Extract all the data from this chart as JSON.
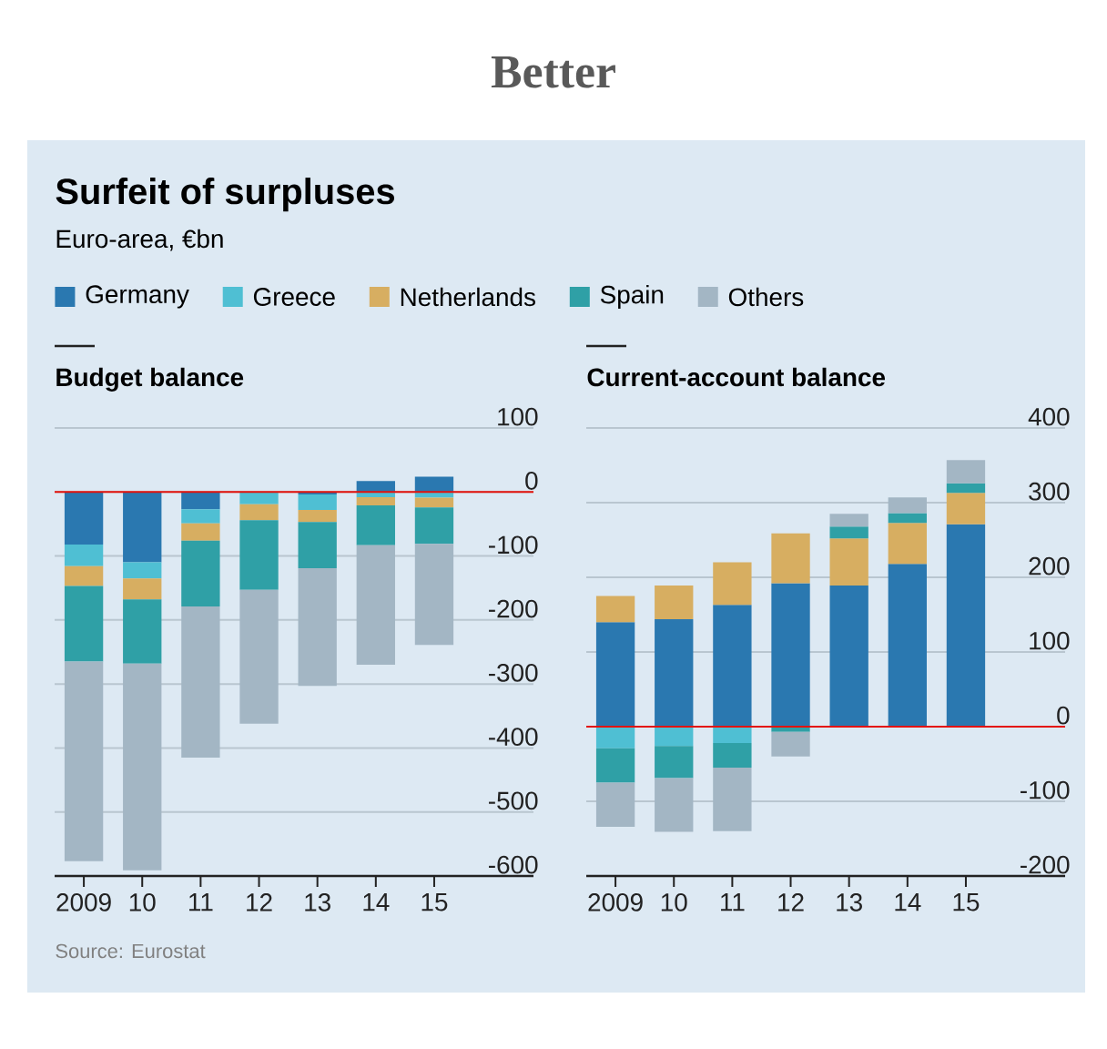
{
  "chart_data": [
    {
      "type": "other",
      "title": "Surfeit of surpluses",
      "subtitle": "Euro-area, €bn",
      "annotations": [
        "Better"
      ]
    },
    {
      "type": "bar",
      "stacked": true,
      "title": "Budget balance",
      "categories": [
        "2009",
        "10",
        "11",
        "12",
        "13",
        "14",
        "15"
      ],
      "ylim": [
        -600,
        100
      ],
      "yticks": [
        100,
        0,
        -100,
        -200,
        -300,
        -400,
        -500,
        -600
      ],
      "grid": "y",
      "legend": "top",
      "ref_lines": [
        {
          "axis": "y",
          "value": 0,
          "color": "#e3120b"
        }
      ],
      "annotations": [
        "Source: Eurostat"
      ],
      "series": [
        {
          "name": "Germany",
          "color": "#2a78b0",
          "values": [
            -82,
            -110,
            -27,
            0,
            -4,
            17,
            24
          ]
        },
        {
          "name": "Greece",
          "color": "#4fbfd3",
          "values": [
            -34,
            -25,
            -22,
            -19,
            -24,
            -8,
            -9
          ]
        },
        {
          "name": "Netherlands",
          "color": "#d7ae61",
          "values": [
            -31,
            -33,
            -27,
            -25,
            -19,
            -13,
            -15
          ]
        },
        {
          "name": "Spain",
          "color": "#2fa0a6",
          "values": [
            -118,
            -100,
            -103,
            -109,
            -72,
            -62,
            -57
          ]
        },
        {
          "name": "Others",
          "color": "#a3b6c4",
          "values": [
            -312,
            -323,
            -236,
            -209,
            -184,
            -187,
            -158
          ]
        }
      ]
    },
    {
      "type": "bar",
      "stacked": true,
      "title": "Current-account balance",
      "categories": [
        "2009",
        "10",
        "11",
        "12",
        "13",
        "14",
        "15"
      ],
      "ylim": [
        -200,
        400
      ],
      "yticks": [
        400,
        300,
        200,
        100,
        0,
        -100,
        -200
      ],
      "grid": "y",
      "ref_lines": [
        {
          "axis": "y",
          "value": 0,
          "color": "#e3120b"
        }
      ],
      "series": [
        {
          "color": "#2a78b0",
          "values": [
            140,
            144,
            163,
            192,
            189,
            218,
            271
          ]
        },
        {
          "color": "#4fbfd3",
          "values": [
            -29,
            -26,
            -22,
            null,
            null,
            null,
            0
          ]
        },
        {
          "color": "#d7ae61",
          "values": [
            35,
            45,
            57,
            67,
            63,
            55,
            42
          ]
        },
        {
          "color": "#2fa0a6",
          "values": [
            -46,
            -43,
            -33,
            -7,
            16,
            13,
            13
          ]
        },
        {
          "color": "#a3b6c4",
          "values": [
            -59,
            -72,
            -85,
            -33,
            17,
            21,
            31
          ]
        }
      ]
    }
  ]
}
